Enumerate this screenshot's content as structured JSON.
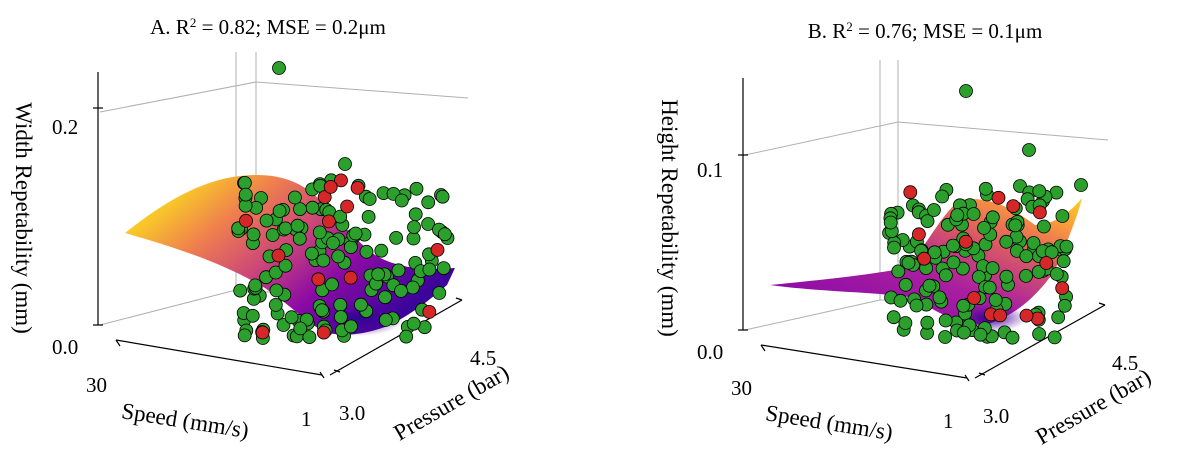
{
  "chart_data": [
    {
      "type": "scatter",
      "title_prefix": "A. R",
      "title_suffix": " = 0.82; MSE = 0.2μm",
      "zlabel": "Width Repetability (mm)",
      "xlabel": "Speed (mm/s)",
      "ylabel": "Pressure (bar)",
      "z_ticks": [
        "0.0",
        "0.2"
      ],
      "x_ticks": [
        "30",
        "1"
      ],
      "y_ticks": [
        "3.0",
        "4.5"
      ],
      "zlim": [
        0,
        0.24
      ],
      "surface_colormap": "plasma",
      "series": [
        {
          "color": "#2ca02c",
          "count": 150
        },
        {
          "color": "#d62728",
          "count": 14
        }
      ]
    },
    {
      "type": "scatter",
      "title_prefix": "B. R",
      "title_suffix": " = 0.76; MSE = 0.1μm",
      "zlabel": "Height Repetability (mm)",
      "xlabel": "Speed (mm/s)",
      "ylabel": "Pressure (bar)",
      "z_ticks": [
        "0.0",
        "0.1"
      ],
      "x_ticks": [
        "30",
        "1"
      ],
      "y_ticks": [
        "3.0",
        "4.5"
      ],
      "zlim": [
        0,
        0.14
      ],
      "surface_colormap": "plasma",
      "series": [
        {
          "color": "#2ca02c",
          "count": 150
        },
        {
          "color": "#d62728",
          "count": 14
        }
      ]
    }
  ]
}
